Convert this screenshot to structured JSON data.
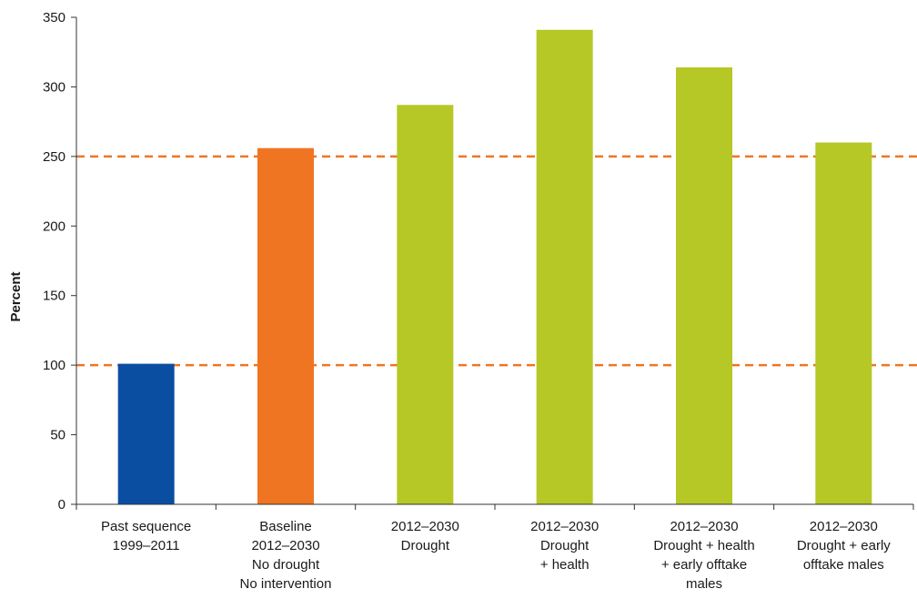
{
  "chart_data": {
    "type": "bar",
    "ylabel": "Percent",
    "xlabel": "",
    "ylim": [
      0,
      350
    ],
    "yticks": [
      0,
      50,
      100,
      150,
      200,
      250,
      300,
      350
    ],
    "categories": [
      [
        "Past sequence",
        "1999–2011"
      ],
      [
        "Baseline",
        "2012–2030",
        "No drought",
        "No intervention"
      ],
      [
        "2012–2030",
        "Drought"
      ],
      [
        "2012–2030",
        "Drought",
        "+ health"
      ],
      [
        "2012–2030",
        "Drought +  health",
        "+ early offtake",
        "males"
      ],
      [
        "2012–2030",
        "Drought + early",
        "offtake males"
      ]
    ],
    "values": [
      101,
      256,
      287,
      341,
      314,
      260
    ],
    "bar_colors": [
      "#0a4ea2",
      "#f07522",
      "#b5c826",
      "#b5c826",
      "#b5c826",
      "#b5c826"
    ],
    "reference_lines": [
      {
        "value": 100,
        "color": "#f07522",
        "style": "dashed"
      },
      {
        "value": 250,
        "color": "#f07522",
        "style": "dashed"
      }
    ],
    "grid": false,
    "legend": "none"
  }
}
